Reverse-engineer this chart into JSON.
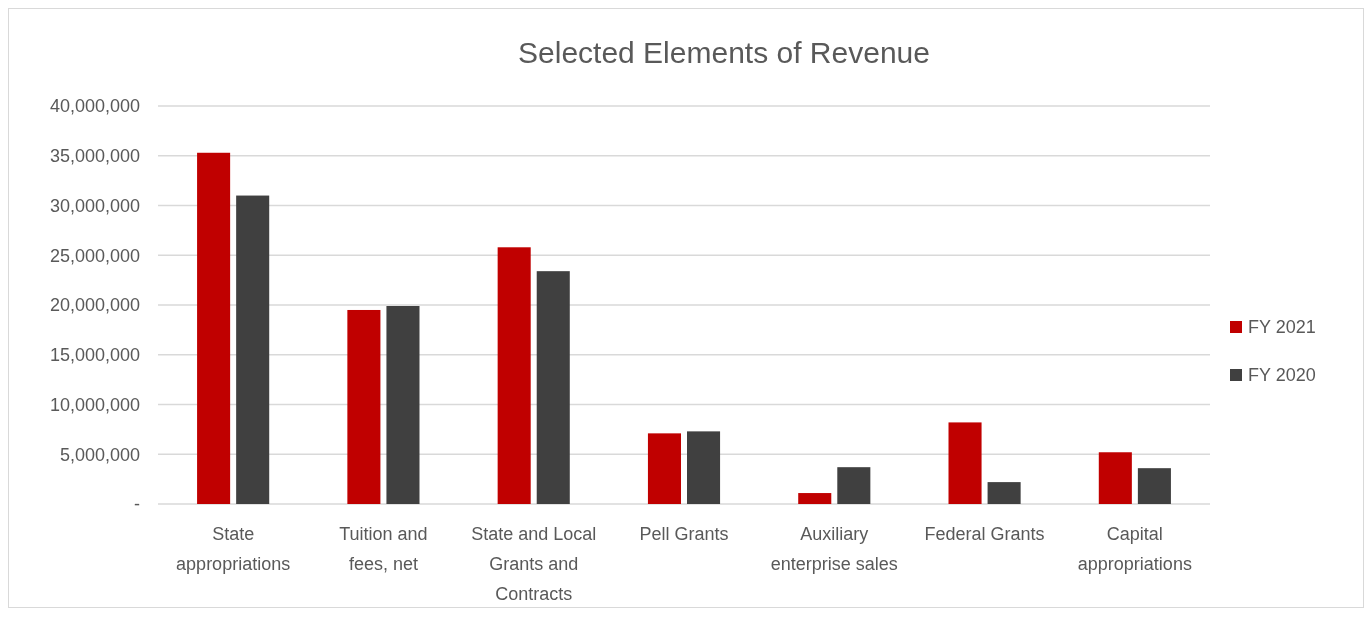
{
  "chart_data": {
    "type": "bar",
    "title": "Selected Elements of Revenue",
    "categories": [
      "State appropriations",
      "Tuition and fees, net",
      "State and Local Grants and Contracts",
      "Pell Grants",
      "Auxiliary enterprise sales",
      "Federal Grants",
      "Capital appropriations"
    ],
    "series": [
      {
        "name": "FY 2021",
        "color": "#c00000",
        "values": [
          35300000,
          19500000,
          25800000,
          7100000,
          1100000,
          8200000,
          5200000
        ]
      },
      {
        "name": "FY 2020",
        "color": "#404040",
        "values": [
          31000000,
          19900000,
          23400000,
          7300000,
          3700000,
          2200000,
          3600000
        ]
      }
    ],
    "ylim": [
      0,
      40000000
    ],
    "yticks": [
      {
        "value": 0,
        "label": "-"
      },
      {
        "value": 5000000,
        "label": "5,000,000"
      },
      {
        "value": 10000000,
        "label": "10,000,000"
      },
      {
        "value": 15000000,
        "label": "15,000,000"
      },
      {
        "value": 20000000,
        "label": "20,000,000"
      },
      {
        "value": 25000000,
        "label": "25,000,000"
      },
      {
        "value": 30000000,
        "label": "30,000,000"
      },
      {
        "value": 35000000,
        "label": "35,000,000"
      },
      {
        "value": 40000000,
        "label": "40,000,000"
      }
    ],
    "grid": "y",
    "legend": "right"
  }
}
